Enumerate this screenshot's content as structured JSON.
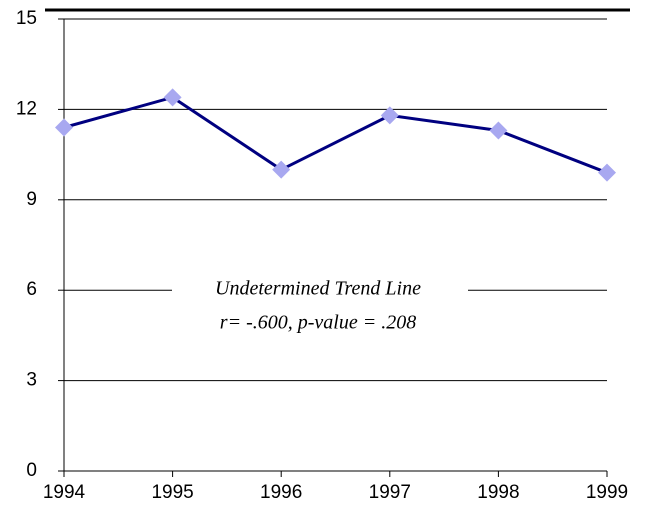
{
  "chart_data": {
    "type": "line",
    "x": [
      1994,
      1995,
      1996,
      1997,
      1998,
      1999
    ],
    "series": [
      {
        "values": [
          11.4,
          12.4,
          10.0,
          11.8,
          11.3,
          9.9
        ],
        "color": "#000080",
        "marker_color": "#a8a8f0"
      }
    ],
    "xlim": [
      1994,
      1999
    ],
    "xticks": [
      1994,
      1995,
      1996,
      1997,
      1998,
      1999
    ],
    "ylim": [
      0,
      15
    ],
    "yticks": [
      0,
      3,
      6,
      9,
      12,
      15
    ],
    "grid": true,
    "annotations": [
      "Undetermined Trend Line",
      "r= -.600, p-value = .208"
    ]
  }
}
